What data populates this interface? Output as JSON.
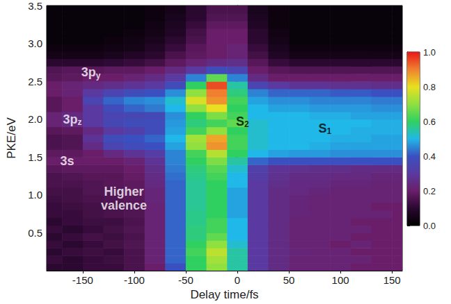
{
  "chart_data": {
    "type": "heatmap",
    "xlabel": "Delay time/fs",
    "ylabel": "PKE/eV",
    "xlim": [
      -185,
      160
    ],
    "xticks": [
      -150,
      -100,
      -50,
      0,
      50,
      100,
      150
    ],
    "ylim": [
      0,
      3.5
    ],
    "yticks": [
      0.5,
      {
        "value": 1,
        "label": "1.0"
      },
      1.5,
      {
        "value": 2,
        "label": "2.0"
      },
      2.5,
      {
        "value": 3,
        "label": "3.0"
      },
      3.5
    ],
    "grid": false,
    "colorbar": {
      "range": [
        0,
        1
      ],
      "ticks": [
        {
          "value": 0,
          "label": "0.0"
        },
        0.2,
        0.4,
        0.6,
        0.8,
        {
          "value": 1,
          "label": "1.0"
        }
      ]
    },
    "annotations": [
      {
        "text": "3p",
        "subscript": "y",
        "x": -142,
        "y": 2.62,
        "color": "#ffffff"
      },
      {
        "text": "3p",
        "subscript": "z",
        "x": -160,
        "y": 2.0,
        "color": "#ffffff"
      },
      {
        "text": "3s",
        "x": -165,
        "y": 1.45,
        "color": "#ffffff"
      },
      {
        "text": "Higher valence",
        "x": -110,
        "y": 0.95,
        "color": "#ffffff"
      },
      {
        "text": "S",
        "subscript": "2",
        "x": 5,
        "y": 1.97,
        "color": "#000000"
      },
      {
        "text": "S",
        "subscript": "1",
        "x": 85,
        "y": 1.88,
        "color": "#000000"
      }
    ],
    "x": [
      -180,
      -160,
      -140,
      -120,
      -100,
      -80,
      -60,
      -40,
      -20,
      0,
      20,
      40,
      60,
      80,
      100,
      120,
      140,
      160
    ],
    "y": [
      0.05,
      0.15,
      0.25,
      0.35,
      0.45,
      0.55,
      0.65,
      0.75,
      0.85,
      0.95,
      1.05,
      1.15,
      1.25,
      1.35,
      1.45,
      1.55,
      1.65,
      1.75,
      1.85,
      1.95,
      2.05,
      2.15,
      2.25,
      2.35,
      2.45,
      2.55,
      2.65,
      2.75,
      2.85,
      2.95,
      3.05,
      3.15,
      3.25,
      3.35,
      3.45
    ],
    "values": [
      [
        0.1,
        0.1,
        0.12,
        0.12,
        0.15,
        0.2,
        0.4,
        0.6,
        0.7,
        0.55,
        0.3,
        0.25,
        0.22,
        0.22,
        0.22,
        0.2,
        0.2,
        0.2
      ],
      [
        0.12,
        0.1,
        0.12,
        0.13,
        0.15,
        0.22,
        0.42,
        0.6,
        0.72,
        0.55,
        0.3,
        0.25,
        0.22,
        0.22,
        0.22,
        0.22,
        0.2,
        0.2
      ],
      [
        0.1,
        0.12,
        0.13,
        0.12,
        0.15,
        0.22,
        0.42,
        0.62,
        0.75,
        0.55,
        0.3,
        0.25,
        0.23,
        0.22,
        0.22,
        0.2,
        0.2,
        0.2
      ],
      [
        0.12,
        0.1,
        0.12,
        0.14,
        0.16,
        0.22,
        0.42,
        0.6,
        0.7,
        0.52,
        0.3,
        0.25,
        0.22,
        0.22,
        0.2,
        0.22,
        0.2,
        0.2
      ],
      [
        0.1,
        0.12,
        0.14,
        0.13,
        0.15,
        0.22,
        0.42,
        0.58,
        0.65,
        0.5,
        0.3,
        0.25,
        0.22,
        0.22,
        0.22,
        0.2,
        0.2,
        0.2
      ],
      [
        0.12,
        0.1,
        0.12,
        0.14,
        0.16,
        0.22,
        0.42,
        0.58,
        0.62,
        0.5,
        0.3,
        0.25,
        0.22,
        0.22,
        0.22,
        0.22,
        0.2,
        0.2
      ],
      [
        0.1,
        0.12,
        0.13,
        0.13,
        0.15,
        0.22,
        0.42,
        0.57,
        0.62,
        0.5,
        0.3,
        0.25,
        0.22,
        0.22,
        0.22,
        0.2,
        0.2,
        0.2
      ],
      [
        0.12,
        0.12,
        0.14,
        0.15,
        0.16,
        0.22,
        0.42,
        0.57,
        0.6,
        0.48,
        0.3,
        0.25,
        0.23,
        0.22,
        0.22,
        0.22,
        0.22,
        0.2
      ],
      [
        0.12,
        0.13,
        0.14,
        0.15,
        0.16,
        0.22,
        0.42,
        0.56,
        0.6,
        0.48,
        0.3,
        0.25,
        0.23,
        0.22,
        0.22,
        0.22,
        0.2,
        0.2
      ],
      [
        0.13,
        0.14,
        0.15,
        0.16,
        0.17,
        0.23,
        0.42,
        0.56,
        0.6,
        0.48,
        0.3,
        0.25,
        0.23,
        0.22,
        0.22,
        0.22,
        0.22,
        0.22
      ],
      [
        0.14,
        0.14,
        0.16,
        0.16,
        0.18,
        0.23,
        0.42,
        0.56,
        0.6,
        0.48,
        0.3,
        0.25,
        0.24,
        0.23,
        0.22,
        0.22,
        0.22,
        0.22
      ],
      [
        0.15,
        0.15,
        0.16,
        0.17,
        0.18,
        0.24,
        0.42,
        0.56,
        0.6,
        0.5,
        0.3,
        0.26,
        0.24,
        0.24,
        0.23,
        0.23,
        0.22,
        0.22
      ],
      [
        0.15,
        0.16,
        0.17,
        0.17,
        0.19,
        0.25,
        0.43,
        0.57,
        0.62,
        0.5,
        0.32,
        0.27,
        0.25,
        0.25,
        0.24,
        0.24,
        0.23,
        0.23
      ],
      [
        0.17,
        0.18,
        0.18,
        0.18,
        0.2,
        0.26,
        0.44,
        0.58,
        0.64,
        0.52,
        0.33,
        0.28,
        0.27,
        0.26,
        0.26,
        0.25,
        0.25,
        0.25
      ],
      [
        0.2,
        0.2,
        0.2,
        0.2,
        0.22,
        0.28,
        0.45,
        0.6,
        0.68,
        0.55,
        0.42,
        0.4,
        0.4,
        0.4,
        0.4,
        0.4,
        0.4,
        0.4
      ],
      [
        0.18,
        0.18,
        0.2,
        0.24,
        0.28,
        0.32,
        0.45,
        0.62,
        0.74,
        0.6,
        0.5,
        0.48,
        0.47,
        0.47,
        0.46,
        0.46,
        0.46,
        0.46
      ],
      [
        0.15,
        0.16,
        0.25,
        0.35,
        0.38,
        0.4,
        0.48,
        0.7,
        0.88,
        0.62,
        0.52,
        0.5,
        0.5,
        0.49,
        0.48,
        0.48,
        0.48,
        0.48
      ],
      [
        0.15,
        0.16,
        0.28,
        0.38,
        0.4,
        0.42,
        0.5,
        0.72,
        0.86,
        0.62,
        0.52,
        0.5,
        0.5,
        0.5,
        0.49,
        0.49,
        0.48,
        0.48
      ],
      [
        0.17,
        0.18,
        0.24,
        0.3,
        0.33,
        0.38,
        0.48,
        0.62,
        0.7,
        0.6,
        0.52,
        0.5,
        0.5,
        0.5,
        0.5,
        0.49,
        0.49,
        0.49
      ],
      [
        0.22,
        0.24,
        0.3,
        0.36,
        0.38,
        0.38,
        0.47,
        0.58,
        0.62,
        0.65,
        0.52,
        0.5,
        0.5,
        0.5,
        0.5,
        0.5,
        0.49,
        0.49
      ],
      [
        0.22,
        0.24,
        0.3,
        0.35,
        0.36,
        0.37,
        0.46,
        0.6,
        0.68,
        0.62,
        0.5,
        0.5,
        0.5,
        0.49,
        0.49,
        0.48,
        0.48,
        0.48
      ],
      [
        0.17,
        0.2,
        0.3,
        0.38,
        0.42,
        0.44,
        0.5,
        0.7,
        0.8,
        0.6,
        0.5,
        0.48,
        0.48,
        0.47,
        0.47,
        0.47,
        0.46,
        0.46
      ],
      [
        0.17,
        0.2,
        0.35,
        0.42,
        0.45,
        0.46,
        0.52,
        0.78,
        0.88,
        0.62,
        0.48,
        0.46,
        0.46,
        0.45,
        0.45,
        0.45,
        0.44,
        0.44
      ],
      [
        0.2,
        0.22,
        0.3,
        0.35,
        0.38,
        0.4,
        0.46,
        0.7,
        0.9,
        0.58,
        0.45,
        0.42,
        0.42,
        0.42,
        0.41,
        0.41,
        0.4,
        0.4
      ],
      [
        0.2,
        0.22,
        0.24,
        0.26,
        0.28,
        0.3,
        0.38,
        0.6,
        0.95,
        0.55,
        0.35,
        0.3,
        0.28,
        0.28,
        0.27,
        0.27,
        0.26,
        0.26
      ],
      [
        0.17,
        0.18,
        0.2,
        0.2,
        0.22,
        0.25,
        0.3,
        0.45,
        0.65,
        0.45,
        0.25,
        0.2,
        0.2,
        0.2,
        0.2,
        0.2,
        0.2,
        0.2
      ],
      [
        0.16,
        0.17,
        0.17,
        0.18,
        0.18,
        0.2,
        0.24,
        0.3,
        0.38,
        0.35,
        0.2,
        0.17,
        0.16,
        0.16,
        0.16,
        0.16,
        0.16,
        0.16
      ],
      [
        0.1,
        0.1,
        0.1,
        0.11,
        0.12,
        0.14,
        0.18,
        0.22,
        0.25,
        0.26,
        0.17,
        0.12,
        0.1,
        0.1,
        0.1,
        0.1,
        0.1,
        0.1
      ],
      [
        0.05,
        0.05,
        0.05,
        0.06,
        0.08,
        0.1,
        0.15,
        0.18,
        0.2,
        0.22,
        0.14,
        0.08,
        0.05,
        0.05,
        0.05,
        0.05,
        0.05,
        0.05
      ],
      [
        0.03,
        0.03,
        0.03,
        0.04,
        0.05,
        0.08,
        0.12,
        0.17,
        0.2,
        0.22,
        0.12,
        0.06,
        0.03,
        0.03,
        0.03,
        0.03,
        0.03,
        0.03
      ],
      [
        0.02,
        0.02,
        0.02,
        0.03,
        0.04,
        0.06,
        0.1,
        0.15,
        0.2,
        0.2,
        0.1,
        0.05,
        0.02,
        0.02,
        0.02,
        0.02,
        0.02,
        0.02
      ],
      [
        0.02,
        0.02,
        0.02,
        0.02,
        0.03,
        0.05,
        0.08,
        0.14,
        0.2,
        0.2,
        0.1,
        0.04,
        0.02,
        0.02,
        0.02,
        0.02,
        0.02,
        0.02
      ],
      [
        0.02,
        0.02,
        0.02,
        0.02,
        0.02,
        0.04,
        0.07,
        0.12,
        0.18,
        0.18,
        0.08,
        0.03,
        0.02,
        0.02,
        0.02,
        0.02,
        0.02,
        0.02
      ],
      [
        0.02,
        0.02,
        0.02,
        0.02,
        0.02,
        0.03,
        0.06,
        0.1,
        0.16,
        0.16,
        0.07,
        0.03,
        0.02,
        0.02,
        0.02,
        0.02,
        0.02,
        0.02
      ],
      [
        0.02,
        0.02,
        0.02,
        0.02,
        0.02,
        0.03,
        0.05,
        0.1,
        0.15,
        0.15,
        0.06,
        0.03,
        0.02,
        0.02,
        0.02,
        0.02,
        0.02,
        0.02
      ]
    ]
  }
}
